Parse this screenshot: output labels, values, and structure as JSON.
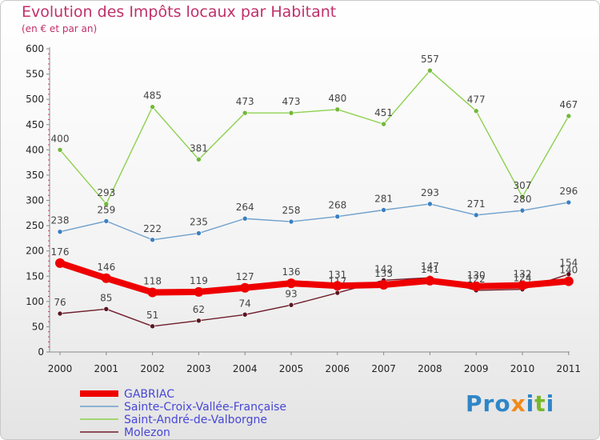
{
  "title": "Evolution des Impôts locaux par Habitant",
  "subtitle": "(en € et par an)",
  "brand": {
    "text": "Proxiti",
    "colors": [
      "#2f86c7",
      "#f08a1c",
      "#76b82a"
    ]
  },
  "chart_data": {
    "type": "line",
    "x": [
      "2000",
      "2001",
      "2002",
      "2003",
      "2004",
      "2005",
      "2006",
      "2007",
      "2008",
      "2009",
      "2010",
      "2011"
    ],
    "ylim": [
      0,
      600
    ],
    "yticks": [
      0,
      50,
      100,
      150,
      200,
      250,
      300,
      350,
      400,
      450,
      500,
      550,
      600
    ],
    "grid": false,
    "legend_position": "bottom-left",
    "series": [
      {
        "name": "Saint-André-de-Valborgne",
        "color": "#8dd14f",
        "marker": "#72b83a",
        "values": [
          400,
          293,
          485,
          381,
          473,
          473,
          480,
          451,
          557,
          477,
          307,
          467
        ]
      },
      {
        "name": "Sainte-Croix-Vallée-Française",
        "color": "#6fa0cc",
        "marker": "#3a7fc1",
        "values": [
          238,
          259,
          222,
          235,
          264,
          258,
          268,
          281,
          293,
          271,
          280,
          296
        ]
      },
      {
        "name": "Molezon",
        "color": "#6e1c2a",
        "marker": "#5a1520",
        "values": [
          76,
          85,
          51,
          62,
          74,
          93,
          117,
          142,
          147,
          122,
          124,
          154
        ]
      },
      {
        "name": "GABRIAC",
        "color": "#ee0000",
        "marker": "#ee0000",
        "values": [
          176,
          146,
          118,
          119,
          127,
          136,
          131,
          133,
          141,
          130,
          132,
          140
        ]
      }
    ],
    "legend_order": [
      "GABRIAC",
      "Sainte-Croix-Vallée-Française",
      "Saint-André-de-Valborgne",
      "Molezon"
    ]
  }
}
